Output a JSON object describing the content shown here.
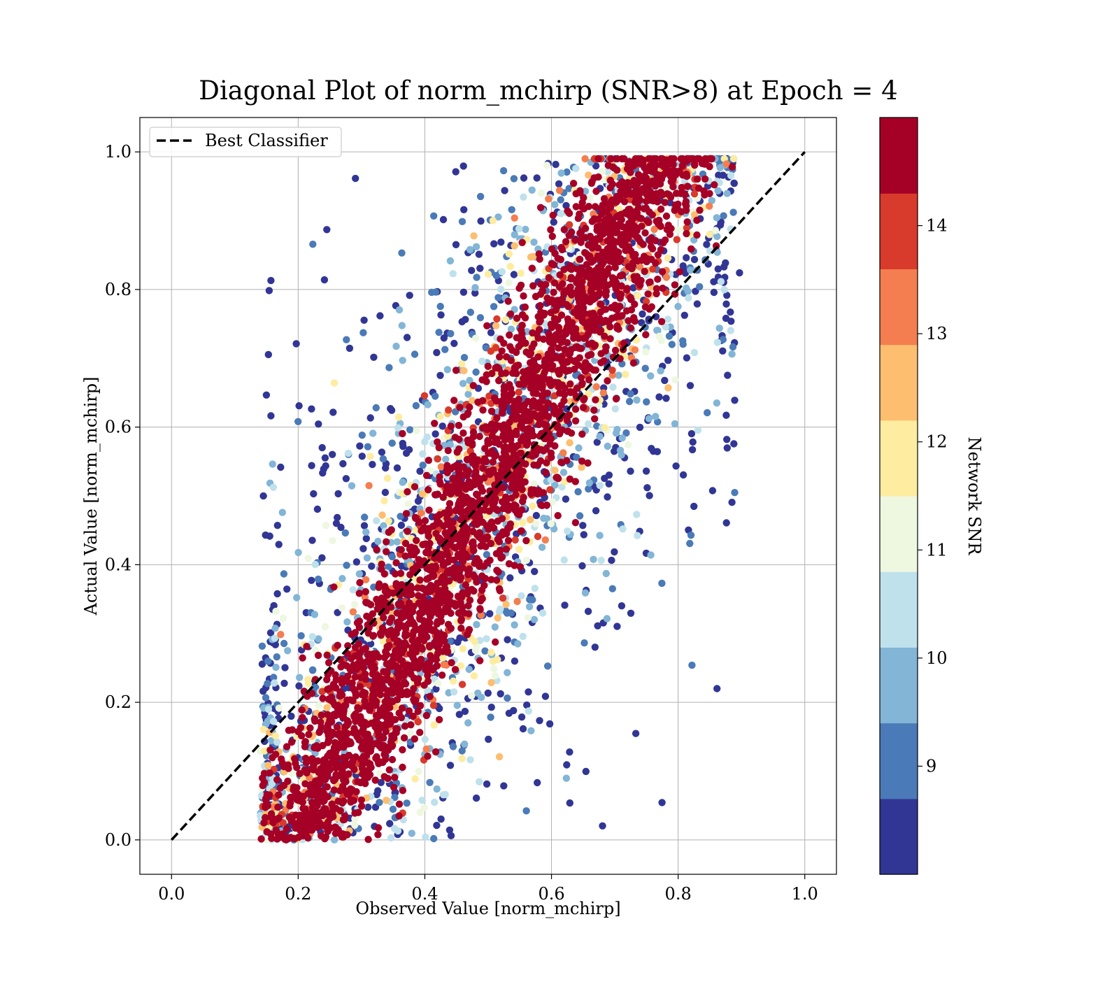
{
  "chart_data": {
    "type": "scatter",
    "title": "Diagonal Plot of norm_mchirp (SNR>8) at Epoch = 4",
    "xlabel": "Observed Value [norm_mchirp]",
    "ylabel": "Actual Value [norm_mchirp]",
    "xlim": [
      -0.05,
      1.05
    ],
    "ylim": [
      -0.05,
      1.05
    ],
    "xticks": [
      "0.0",
      "0.2",
      "0.4",
      "0.6",
      "0.8",
      "1.0"
    ],
    "xtick_values": [
      0.0,
      0.2,
      0.4,
      0.6,
      0.8,
      1.0
    ],
    "yticks": [
      "0.0",
      "0.2",
      "0.4",
      "0.6",
      "0.8",
      "1.0"
    ],
    "ytick_values": [
      0.0,
      0.2,
      0.4,
      0.6,
      0.8,
      1.0
    ],
    "grid": true,
    "legend": {
      "placement": "upper-left",
      "entries": [
        {
          "label": "Best Classifier",
          "style": "dashed",
          "color": "#000000"
        }
      ]
    },
    "reference_line": {
      "name": "Best Classifier",
      "x": [
        0.0,
        1.0
      ],
      "y": [
        0.0,
        1.0
      ]
    },
    "colorbar": {
      "label": "Network SNR",
      "range": [
        8,
        15
      ],
      "ticks": [
        "9",
        "10",
        "11",
        "12",
        "13",
        "14"
      ],
      "tick_values": [
        9,
        10,
        11,
        12,
        13,
        14
      ],
      "colors": [
        "#313695",
        "#4575b4",
        "#74add1",
        "#abd9e9",
        "#e0f3f8",
        "#ffffbf",
        "#fee090",
        "#fdae61",
        "#f46d43",
        "#d73027",
        "#a50026"
      ],
      "bands": [
        "#313695",
        "#4a7ab7",
        "#82b5d6",
        "#bfe1ec",
        "#eef7e0",
        "#feeca0",
        "#fdbe6f",
        "#f47e4f",
        "#d83a2c",
        "#a50026"
      ]
    }
  }
}
